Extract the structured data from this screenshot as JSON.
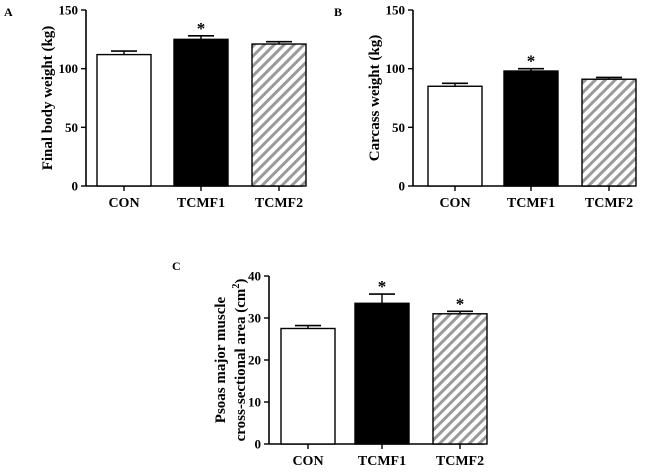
{
  "chart_data": [
    {
      "type": "bar",
      "panel": "A",
      "categories": [
        "CON",
        "TCMF1",
        "TCMF2"
      ],
      "values": [
        112,
        125,
        121
      ],
      "errors": [
        3,
        3,
        2
      ],
      "significance": [
        "",
        "*",
        ""
      ],
      "ylabel": "Final body weight (kg)",
      "ylim": [
        0,
        150
      ],
      "yticks": [
        0,
        50,
        100,
        150
      ]
    },
    {
      "type": "bar",
      "panel": "B",
      "categories": [
        "CON",
        "TCMF1",
        "TCMF2"
      ],
      "values": [
        85,
        98,
        91
      ],
      "errors": [
        2.5,
        2,
        1.5
      ],
      "significance": [
        "",
        "*",
        ""
      ],
      "ylabel": "Carcass weight (kg)",
      "ylim": [
        0,
        150
      ],
      "yticks": [
        0,
        50,
        100,
        150
      ]
    },
    {
      "type": "bar",
      "panel": "C",
      "categories": [
        "CON",
        "TCMF1",
        "TCMF2"
      ],
      "values": [
        27.5,
        33.5,
        31
      ],
      "errors": [
        0.7,
        2.2,
        0.6
      ],
      "significance": [
        "",
        "*",
        "*"
      ],
      "ylabel_lines": [
        "Psoas major muscle",
        "cross-sectional area (cm",
        "2",
        ")"
      ],
      "ylim": [
        0,
        40
      ],
      "yticks": [
        0,
        10,
        20,
        30,
        40
      ]
    }
  ],
  "bar_styles": [
    "white",
    "black",
    "hatched"
  ],
  "colors": {
    "axis": "#000000",
    "black_bar": "#000000",
    "hatch": "#9a9a9a"
  }
}
